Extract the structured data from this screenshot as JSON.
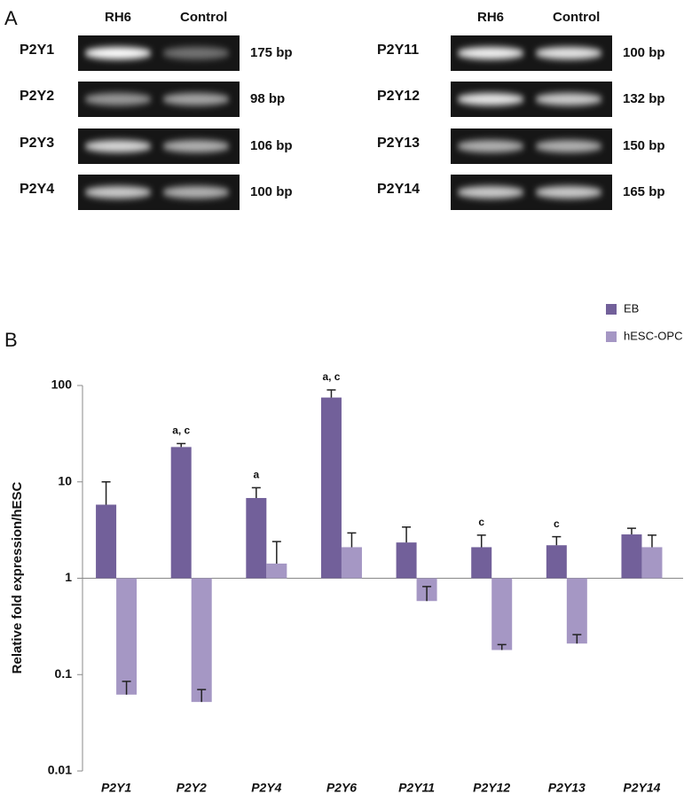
{
  "panel_a": {
    "label": "A",
    "gels": [
      {
        "columns": [
          "RH6",
          "Control"
        ],
        "rows": [
          {
            "gene": "P2Y1",
            "size": "175 bp"
          },
          {
            "gene": "P2Y2",
            "size": "98 bp"
          },
          {
            "gene": "P2Y3",
            "size": "106 bp"
          },
          {
            "gene": "P2Y4",
            "size": "100 bp"
          }
        ]
      },
      {
        "columns": [
          "RH6",
          "Control"
        ],
        "rows": [
          {
            "gene": "P2Y11",
            "size": "100 bp"
          },
          {
            "gene": "P2Y12",
            "size": "132 bp"
          },
          {
            "gene": "P2Y13",
            "size": "150 bp"
          },
          {
            "gene": "P2Y14",
            "size": "165 bp"
          }
        ]
      }
    ]
  },
  "chart_data": {
    "type": "bar",
    "panel_label": "B",
    "ylabel": "Relative fold expression/hESC",
    "categories": [
      "P2Y1",
      "P2Y2",
      "P2Y4",
      "P2Y6",
      "P2Y11",
      "P2Y12",
      "P2Y13",
      "P2Y14"
    ],
    "series": [
      {
        "name": "EB",
        "color": "#72609a",
        "values": [
          5.8,
          23,
          6.8,
          75,
          2.35,
          2.1,
          2.2,
          2.85
        ],
        "errors": [
          4.2,
          2,
          1.9,
          15,
          1.05,
          0.7,
          0.5,
          0.45
        ]
      },
      {
        "name": "hESC-OPC",
        "color": "#a597c4",
        "values": [
          0.062,
          0.052,
          1.42,
          2.1,
          0.58,
          0.18,
          0.21,
          2.1
        ],
        "errors": [
          0.023,
          0.018,
          0.98,
          0.85,
          0.24,
          0.025,
          0.05,
          0.7
        ]
      }
    ],
    "significance": [
      null,
      "a, c",
      "a",
      "a, c",
      null,
      "c",
      "c",
      null
    ],
    "ylim": [
      0.01,
      100
    ],
    "yticks": [
      0.01,
      0.1,
      1,
      10,
      100
    ],
    "log_scale": true,
    "grid": false,
    "legend": "top-right"
  }
}
